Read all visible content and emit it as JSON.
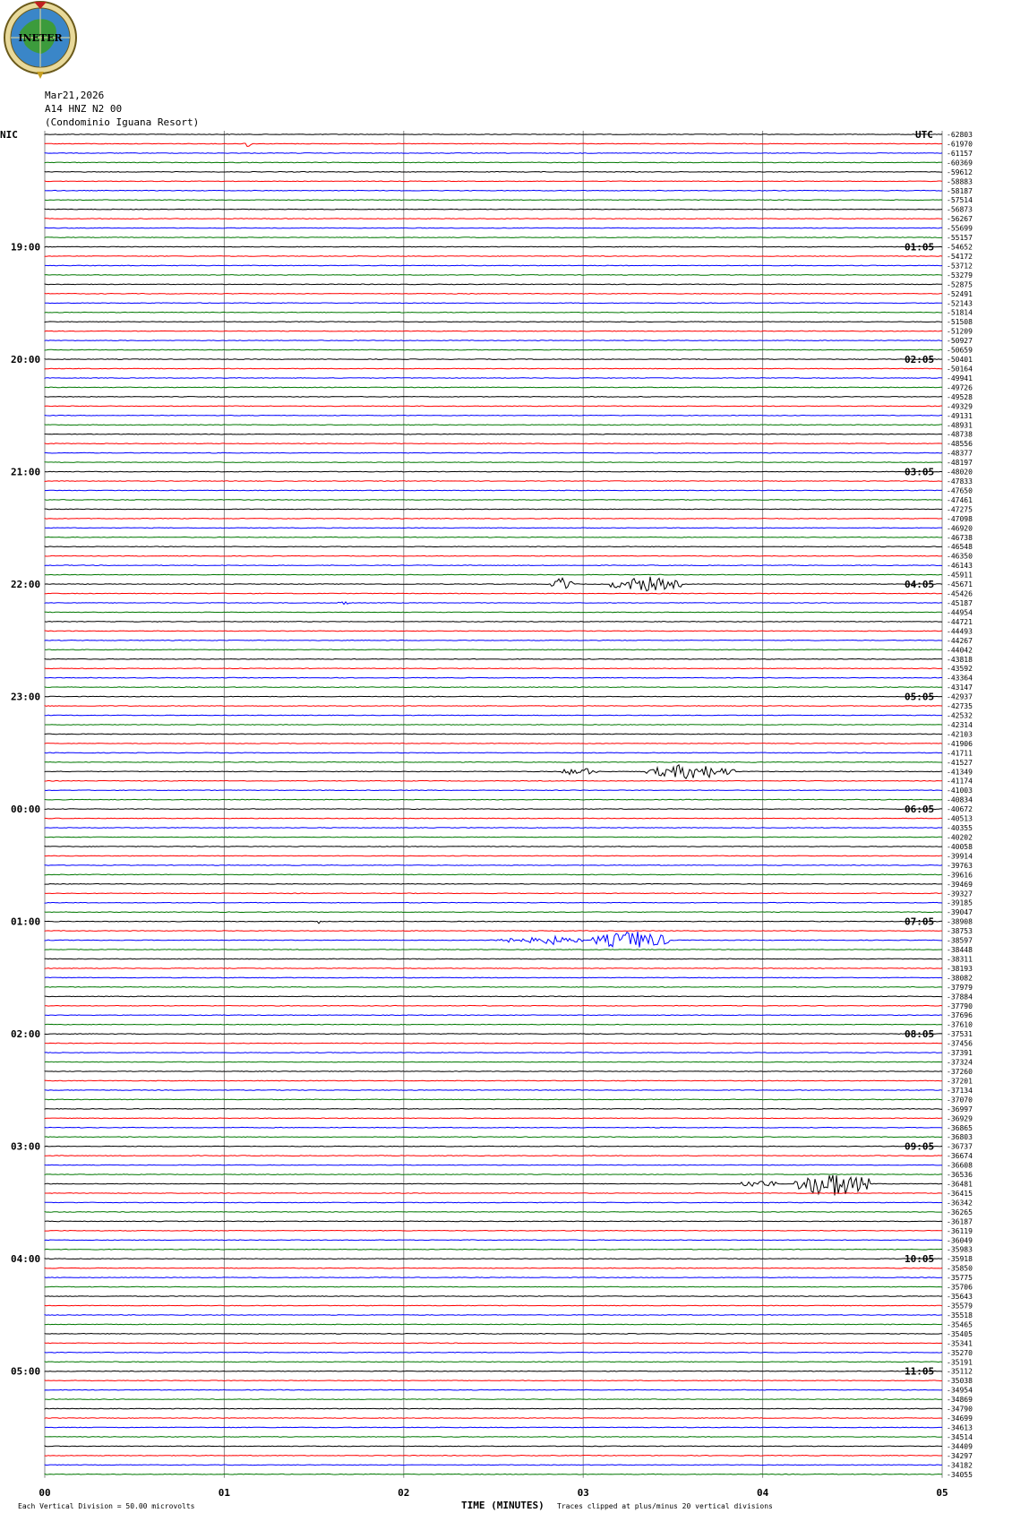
{
  "header": {
    "date": "Mar21,2026",
    "station": "A14 HNZ N2 00",
    "site": "(Condominio Iguana Resort)"
  },
  "logo": {
    "text": "INETER"
  },
  "left_tz": "NIC",
  "right_tz": "UTC",
  "footer": {
    "scale_note": "Each Vertical Division =   50.00 microvolts",
    "xlabel": "TIME (MINUTES)",
    "clip_note": "Traces clipped at plus/minus 20 vertical divisions"
  },
  "colors": {
    "cycle": [
      "#000000",
      "#ff0000",
      "#0000ff",
      "#007700"
    ],
    "grid": "#888888"
  },
  "chart_data": {
    "type": "line",
    "title": "",
    "xlabel": "TIME (MINUTES)",
    "ylabel": "",
    "xlim": [
      0,
      5
    ],
    "x_ticks": [
      "00",
      "01",
      "02",
      "03",
      "04",
      "05"
    ],
    "left_hour_labels": [
      "19:00",
      "20:00",
      "21:00",
      "22:00",
      "23:00",
      "00:00",
      "01:00",
      "02:00",
      "03:00",
      "04:00",
      "05:00"
    ],
    "right_hour_labels": [
      "01:05",
      "02:05",
      "03:05",
      "04:05",
      "05:05",
      "06:05",
      "07:05",
      "08:05",
      "09:05",
      "10:05",
      "11:05"
    ],
    "trace_count": 144,
    "hour_label_first_trace": 12,
    "traces_per_hour": 12,
    "offsets": [
      "-62803",
      "-61970",
      "-61157",
      "-60369",
      "-59612",
      "-58883",
      "-58187",
      "-57514",
      "-56873",
      "-56267",
      "-55699",
      "-55157",
      "-54652",
      "-54172",
      "-53712",
      "-53279",
      "-52875",
      "-52491",
      "-52143",
      "-51814",
      "-51508",
      "-51209",
      "-50927",
      "-50659",
      "-50401",
      "-50164",
      "-49941",
      "-49726",
      "-49528",
      "-49329",
      "-49131",
      "-48931",
      "-48738",
      "-48556",
      "-48377",
      "-48197",
      "-48020",
      "-47833",
      "-47650",
      "-47461",
      "-47275",
      "-47098",
      "-46920",
      "-46738",
      "-46548",
      "-46350",
      "-46143",
      "-45911",
      "-45671",
      "-45426",
      "-45187",
      "-44954",
      "-44721",
      "-44493",
      "-44267",
      "-44042",
      "-43818",
      "-43592",
      "-43364",
      "-43147",
      "-42937",
      "-42735",
      "-42532",
      "-42314",
      "-42103",
      "-41906",
      "-41711",
      "-41527",
      "-41349",
      "-41174",
      "-41003",
      "-40834",
      "-40672",
      "-40513",
      "-40355",
      "-40202",
      "-40058",
      "-39914",
      "-39763",
      "-39616",
      "-39469",
      "-39327",
      "-39185",
      "-39047",
      "-38908",
      "-38753",
      "-38597",
      "-38448",
      "-38311",
      "-38193",
      "-38082",
      "-37979",
      "-37884",
      "-37790",
      "-37696",
      "-37610",
      "-37531",
      "-37456",
      "-37391",
      "-37324",
      "-37260",
      "-37201",
      "-37134",
      "-37070",
      "-36997",
      "-36929",
      "-36865",
      "-36803",
      "-36737",
      "-36674",
      "-36608",
      "-36536",
      "-36481",
      "-36415",
      "-36342",
      "-36265",
      "-36187",
      "-36119",
      "-36049",
      "-35983",
      "-35918",
      "-35850",
      "-35775",
      "-35706",
      "-35643",
      "-35579",
      "-35518",
      "-35465",
      "-35405",
      "-35341",
      "-35270",
      "-35191",
      "-35112",
      "-35038",
      "-34954",
      "-34869",
      "-34790",
      "-34699",
      "-34613",
      "-34514",
      "-34409",
      "-34297",
      "-34182",
      "-34055"
    ],
    "events": [
      {
        "trace": 48,
        "bursts": [
          {
            "start": 2.82,
            "end": 2.95,
            "amp": 8
          },
          {
            "start": 3.15,
            "end": 3.55,
            "amp": 9
          }
        ]
      },
      {
        "trace": 50,
        "bursts": [
          {
            "start": 1.62,
            "end": 1.72,
            "amp": 2
          }
        ]
      },
      {
        "trace": 68,
        "bursts": [
          {
            "start": 2.88,
            "end": 3.08,
            "amp": 5
          },
          {
            "start": 3.35,
            "end": 3.85,
            "amp": 9
          }
        ]
      },
      {
        "trace": 84,
        "bursts": [
          {
            "start": 1.52,
            "end": 1.54,
            "amp": 4
          }
        ]
      },
      {
        "trace": 86,
        "bursts": [
          {
            "start": 2.48,
            "end": 2.62,
            "amp": 4
          },
          {
            "start": 2.65,
            "end": 3.0,
            "amp": 5
          },
          {
            "start": 3.05,
            "end": 3.5,
            "amp": 11
          }
        ]
      },
      {
        "trace": 112,
        "bursts": [
          {
            "start": 3.88,
            "end": 4.08,
            "amp": 5
          },
          {
            "start": 4.18,
            "end": 4.6,
            "amp": 16
          }
        ]
      },
      {
        "trace": 1,
        "bursts": [
          {
            "start": 1.1,
            "end": 1.16,
            "amp": 4
          }
        ]
      }
    ]
  }
}
